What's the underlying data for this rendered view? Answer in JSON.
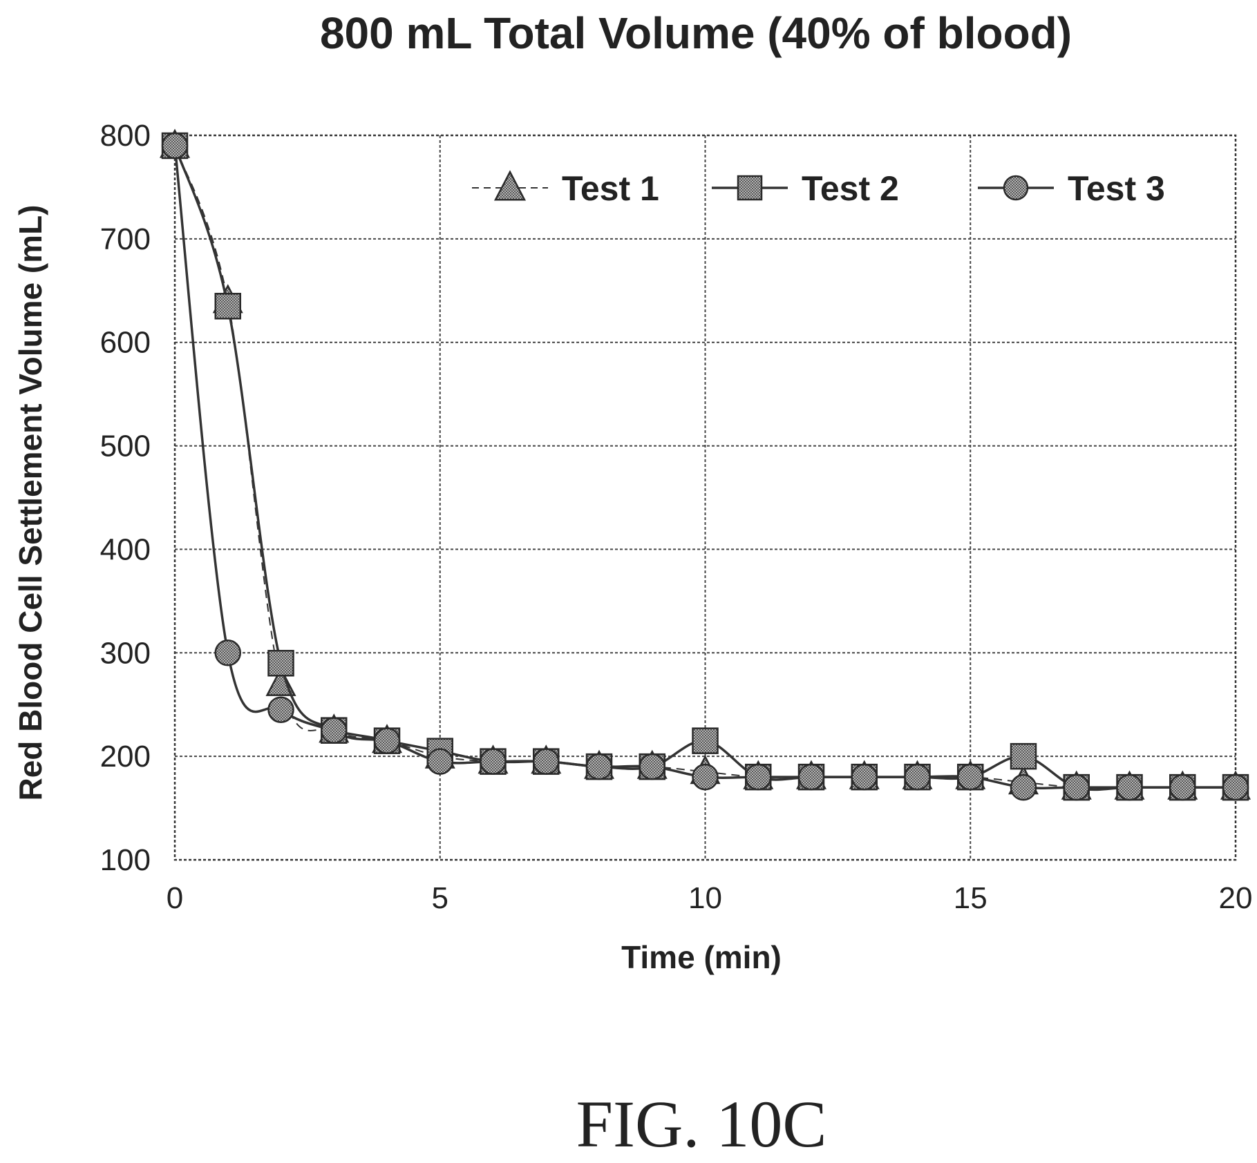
{
  "chart_data": {
    "type": "line",
    "title": "800 mL Total Volume (40% of blood)",
    "xlabel": "Time (min)",
    "ylabel": "Red Blood Cell Settlement Volume (mL)",
    "xlim": [
      0,
      20
    ],
    "ylim": [
      100,
      800
    ],
    "x_ticks": [
      0,
      5,
      10,
      15,
      20
    ],
    "y_ticks": [
      100,
      200,
      300,
      400,
      500,
      600,
      700,
      800
    ],
    "grid": true,
    "legend_position": "top",
    "series": [
      {
        "name": "Test 1",
        "marker": "triangle",
        "line_style": "dashed",
        "x": [
          0,
          1,
          2,
          3,
          4,
          5,
          6,
          7,
          8,
          9,
          10,
          11,
          12,
          13,
          14,
          15,
          16,
          17,
          18,
          19,
          20
        ],
        "y": [
          790,
          640,
          270,
          225,
          215,
          200,
          195,
          195,
          190,
          190,
          185,
          180,
          180,
          180,
          180,
          180,
          175,
          170,
          170,
          170,
          170
        ]
      },
      {
        "name": "Test 2",
        "marker": "square",
        "line_style": "solid",
        "x": [
          0,
          1,
          2,
          3,
          4,
          5,
          6,
          7,
          8,
          9,
          10,
          11,
          12,
          13,
          14,
          15,
          16,
          17,
          18,
          19,
          20
        ],
        "y": [
          790,
          635,
          290,
          225,
          215,
          205,
          195,
          195,
          190,
          190,
          215,
          180,
          180,
          180,
          180,
          180,
          200,
          170,
          170,
          170,
          170
        ]
      },
      {
        "name": "Test 3",
        "marker": "circle",
        "line_style": "solid",
        "x": [
          0,
          1,
          2,
          3,
          4,
          5,
          6,
          7,
          8,
          9,
          10,
          11,
          12,
          13,
          14,
          15,
          16,
          17,
          18,
          19,
          20
        ],
        "y": [
          790,
          300,
          245,
          225,
          215,
          195,
          195,
          195,
          190,
          190,
          180,
          180,
          180,
          180,
          180,
          180,
          170,
          170,
          170,
          170,
          170
        ]
      }
    ],
    "colors": {
      "marker_fill": "#8a8a8a",
      "line": "#333333",
      "grid": "#444444"
    }
  },
  "caption": "FIG. 10C"
}
